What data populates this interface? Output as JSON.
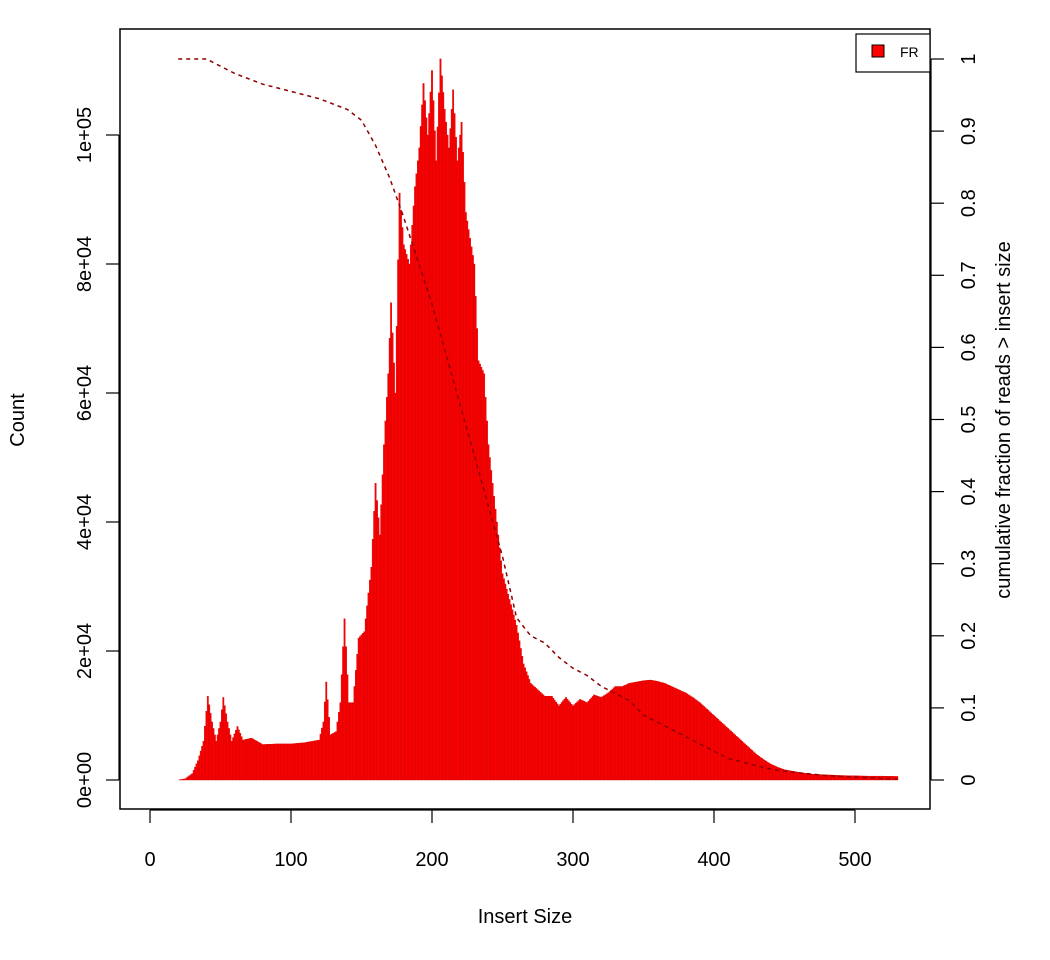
{
  "chart_data": {
    "type": "bar",
    "title": "",
    "xlabel": "Insert Size",
    "ylabel": "Count",
    "y2label": "cumulative fraction of reads > insert size",
    "xlim": [
      0,
      550
    ],
    "ylim": [
      0,
      112000
    ],
    "y2lim": [
      0,
      1
    ],
    "x_ticks": [
      0,
      100,
      200,
      300,
      400,
      500
    ],
    "x_tick_labels": [
      "0",
      "100",
      "200",
      "300",
      "400",
      "500"
    ],
    "y_ticks": [
      0,
      20000,
      40000,
      60000,
      80000,
      100000
    ],
    "y_tick_labels": [
      "0e+00",
      "2e+04",
      "4e+04",
      "6e+04",
      "8e+04",
      "1e+05"
    ],
    "y2_ticks": [
      0,
      0.1,
      0.2,
      0.3,
      0.4,
      0.5,
      0.6,
      0.7,
      0.8,
      0.9,
      1
    ],
    "y2_tick_labels": [
      "0",
      "0.1",
      "0.2",
      "0.3",
      "0.4",
      "0.5",
      "0.6",
      "0.7",
      "0.8",
      "0.9",
      "1"
    ],
    "grid": false,
    "legend": {
      "position": "top-right",
      "entries": [
        {
          "name": "FR",
          "color": "#ff0000"
        }
      ]
    },
    "colors": {
      "bars": "#ff0000",
      "bar_edge": "#cc0000",
      "cumulative": "#8b0000"
    },
    "series": [
      {
        "name": "FR",
        "kind": "histogram",
        "points": [
          [
            20,
            0
          ],
          [
            25,
            200
          ],
          [
            30,
            1000
          ],
          [
            34,
            3000
          ],
          [
            38,
            6000
          ],
          [
            41,
            13000
          ],
          [
            44,
            9000
          ],
          [
            47,
            6000
          ],
          [
            50,
            9000
          ],
          [
            52,
            12800
          ],
          [
            55,
            9000
          ],
          [
            58,
            6000
          ],
          [
            62,
            8300
          ],
          [
            66,
            6200
          ],
          [
            72,
            6500
          ],
          [
            80,
            5500
          ],
          [
            90,
            5600
          ],
          [
            100,
            5600
          ],
          [
            110,
            5800
          ],
          [
            120,
            6200
          ],
          [
            123,
            9000
          ],
          [
            125,
            15200
          ],
          [
            128,
            7000
          ],
          [
            132,
            7500
          ],
          [
            135,
            12000
          ],
          [
            138,
            25000
          ],
          [
            141,
            12000
          ],
          [
            144,
            12000
          ],
          [
            148,
            22000
          ],
          [
            152,
            23000
          ],
          [
            157,
            33000
          ],
          [
            160,
            46000
          ],
          [
            163,
            38000
          ],
          [
            166,
            52000
          ],
          [
            169,
            63000
          ],
          [
            171,
            74000
          ],
          [
            174,
            60000
          ],
          [
            177,
            91000
          ],
          [
            180,
            83000
          ],
          [
            184,
            80000
          ],
          [
            188,
            92000
          ],
          [
            191,
            98000
          ],
          [
            194,
            108000
          ],
          [
            197,
            100000
          ],
          [
            200,
            110000
          ],
          [
            203,
            96000
          ],
          [
            206,
            111800
          ],
          [
            209,
            104000
          ],
          [
            212,
            98000
          ],
          [
            215,
            107000
          ],
          [
            218,
            96000
          ],
          [
            221,
            102000
          ],
          [
            224,
            88000
          ],
          [
            227,
            84000
          ],
          [
            230,
            80000
          ],
          [
            233,
            65000
          ],
          [
            237,
            63000
          ],
          [
            240,
            52000
          ],
          [
            245,
            42000
          ],
          [
            250,
            32000
          ],
          [
            255,
            28000
          ],
          [
            260,
            24000
          ],
          [
            265,
            18000
          ],
          [
            270,
            15000
          ],
          [
            275,
            14000
          ],
          [
            280,
            13000
          ],
          [
            285,
            13000
          ],
          [
            290,
            11500
          ],
          [
            295,
            12800
          ],
          [
            300,
            11500
          ],
          [
            305,
            12500
          ],
          [
            310,
            12000
          ],
          [
            315,
            13200
          ],
          [
            320,
            12800
          ],
          [
            325,
            13500
          ],
          [
            330,
            14500
          ],
          [
            335,
            14500
          ],
          [
            340,
            15000
          ],
          [
            345,
            15200
          ],
          [
            350,
            15400
          ],
          [
            355,
            15500
          ],
          [
            360,
            15300
          ],
          [
            365,
            15000
          ],
          [
            370,
            14500
          ],
          [
            375,
            14000
          ],
          [
            380,
            13500
          ],
          [
            385,
            12800
          ],
          [
            390,
            12000
          ],
          [
            395,
            11000
          ],
          [
            400,
            10000
          ],
          [
            405,
            9000
          ],
          [
            410,
            8000
          ],
          [
            415,
            7000
          ],
          [
            420,
            6000
          ],
          [
            425,
            5000
          ],
          [
            430,
            4000
          ],
          [
            435,
            3200
          ],
          [
            440,
            2500
          ],
          [
            445,
            2000
          ],
          [
            450,
            1600
          ],
          [
            460,
            1200
          ],
          [
            470,
            900
          ],
          [
            480,
            800
          ],
          [
            490,
            700
          ],
          [
            500,
            650
          ],
          [
            510,
            600
          ],
          [
            520,
            600
          ],
          [
            530,
            550
          ]
        ]
      },
      {
        "name": "cumulative",
        "kind": "dashed-line",
        "axis": "right",
        "points": [
          [
            20,
            1.0
          ],
          [
            40,
            1.0
          ],
          [
            60,
            0.98
          ],
          [
            80,
            0.965
          ],
          [
            100,
            0.955
          ],
          [
            120,
            0.945
          ],
          [
            140,
            0.93
          ],
          [
            150,
            0.915
          ],
          [
            160,
            0.88
          ],
          [
            170,
            0.835
          ],
          [
            180,
            0.78
          ],
          [
            190,
            0.72
          ],
          [
            200,
            0.66
          ],
          [
            210,
            0.59
          ],
          [
            220,
            0.52
          ],
          [
            230,
            0.45
          ],
          [
            240,
            0.38
          ],
          [
            250,
            0.31
          ],
          [
            260,
            0.225
          ],
          [
            270,
            0.2
          ],
          [
            280,
            0.19
          ],
          [
            290,
            0.17
          ],
          [
            300,
            0.155
          ],
          [
            310,
            0.145
          ],
          [
            320,
            0.13
          ],
          [
            330,
            0.12
          ],
          [
            340,
            0.11
          ],
          [
            350,
            0.09
          ],
          [
            360,
            0.08
          ],
          [
            370,
            0.07
          ],
          [
            380,
            0.06
          ],
          [
            390,
            0.05
          ],
          [
            400,
            0.04
          ],
          [
            410,
            0.03
          ],
          [
            420,
            0.025
          ],
          [
            430,
            0.02
          ],
          [
            440,
            0.015
          ],
          [
            450,
            0.012
          ],
          [
            460,
            0.01
          ],
          [
            470,
            0.008
          ],
          [
            480,
            0.006
          ],
          [
            490,
            0.005
          ],
          [
            500,
            0.004
          ],
          [
            510,
            0.003
          ],
          [
            520,
            0.002
          ],
          [
            530,
            0.001
          ]
        ]
      }
    ]
  }
}
